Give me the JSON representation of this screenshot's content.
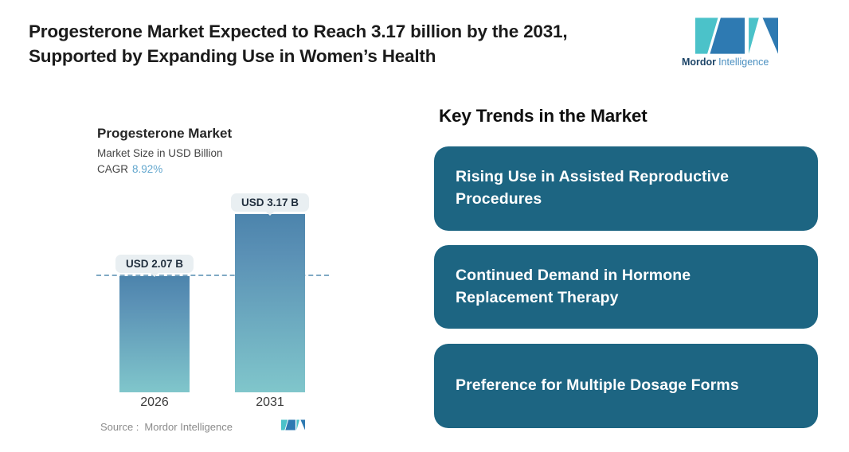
{
  "header": {
    "title_line1": "Progesterone Market Expected to Reach 3.17 billion by the 2031,",
    "title_line2": "Supported by Expanding Use in Women’s Health"
  },
  "brand": {
    "name_bold": "Mordor",
    "name_light": "Intelligence",
    "teal": "#4bc2c9",
    "blue": "#2e7ab2"
  },
  "chart": {
    "title": "Progesterone Market",
    "subtitle": "Market Size in USD Billion",
    "cagr_label": "CAGR",
    "cagr_value": "8.92%",
    "cagr_value_color": "#63a7ce",
    "bar_gradient_top": "#4c84ac",
    "bar_gradient_bottom": "#80c6cb",
    "bars": [
      {
        "year": "2026",
        "label": "USD 2.07 B"
      },
      {
        "year": "2031",
        "label": "USD 3.17 B"
      }
    ],
    "source_label": "Source :",
    "source_value": "Mordor Intelligence"
  },
  "chart_data": {
    "type": "bar",
    "categories": [
      "2026",
      "2031"
    ],
    "values": [
      2.07,
      3.17
    ],
    "title": "Progesterone Market",
    "xlabel": "",
    "ylabel": "Market Size in USD Billion",
    "ylim": [
      0,
      3.17
    ],
    "data_labels": [
      "USD 2.07 B",
      "USD 3.17 B"
    ],
    "cagr": "8.92%",
    "grid": false,
    "legend": "none",
    "annotations": [
      "horizontal dashed reference line at 2026 value (2.07)"
    ],
    "source": "Source : Mordor Intelligence"
  },
  "trends": {
    "heading": "Key Trends in the Market",
    "card_color": "#1d6582",
    "cards": [
      {
        "line1": "Rising Use in Assisted Reproductive",
        "line2": "Procedures",
        "text": "Rising Use in Assisted Reproductive Procedures"
      },
      {
        "line1": "Continued Demand in Hormone",
        "line2": "Replacement Therapy",
        "text": "Continued Demand in Hormone Replacement Therapy"
      },
      {
        "line1": "Preference for Multiple Dosage Forms",
        "line2": "",
        "text": "Preference for Multiple Dosage Forms"
      }
    ]
  }
}
